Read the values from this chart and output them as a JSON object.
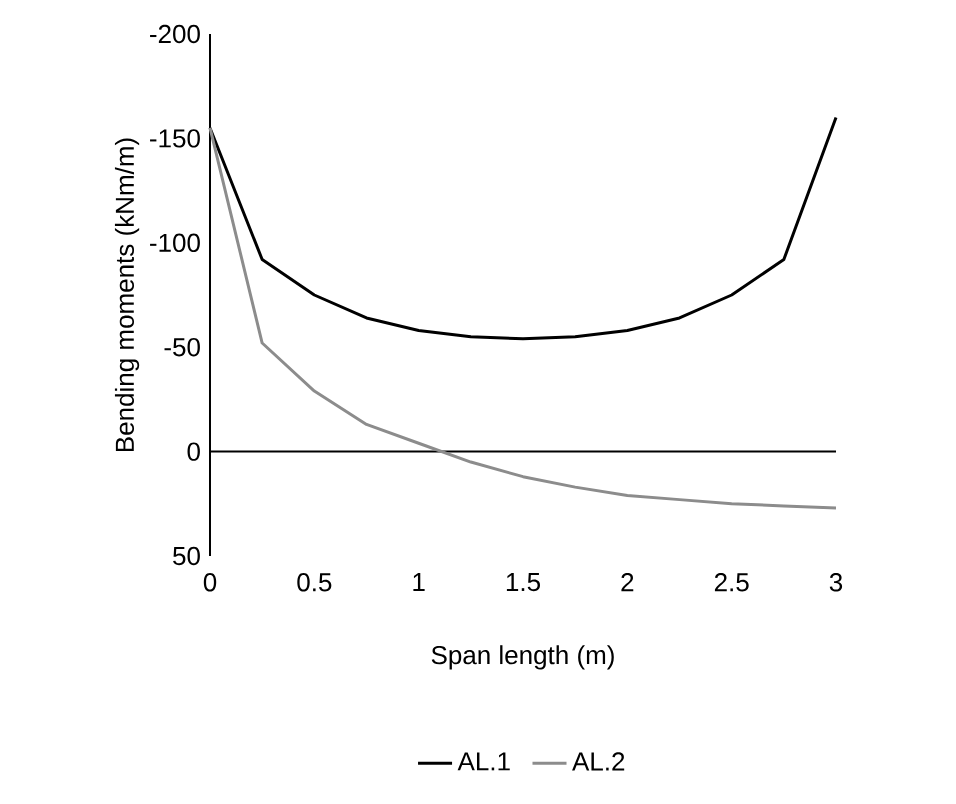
{
  "chart_data": {
    "type": "line",
    "xlabel": "Span length (m)",
    "ylabel": "Bending moments (kNm/m)",
    "x": [
      0,
      0.25,
      0.5,
      0.75,
      1,
      1.25,
      1.5,
      1.75,
      2,
      2.25,
      2.5,
      2.75,
      3
    ],
    "series": [
      {
        "name": "AL.1",
        "color": "#000000",
        "values": [
          -155,
          -92,
          -75,
          -64,
          -58,
          -55,
          -54,
          -55,
          -58,
          -64,
          -75,
          -92,
          -160
        ]
      },
      {
        "name": "AL.2",
        "color": "#8c8c8c",
        "values": [
          -155,
          -52,
          -29,
          -13,
          -4,
          5,
          12,
          17,
          21,
          23,
          25,
          26,
          27
        ]
      }
    ],
    "xlim": [
      0,
      3
    ],
    "xticks": [
      0,
      0.5,
      1,
      1.5,
      2,
      2.5,
      3
    ],
    "ylim": [
      50,
      -200
    ],
    "yticks": [
      -200,
      -150,
      -100,
      -50,
      0,
      50
    ],
    "ref_lines": [
      {
        "axis": "y",
        "value": 0,
        "color": "#000000"
      }
    ],
    "legend": "bottom",
    "marker": "none",
    "line_style": "solid"
  }
}
